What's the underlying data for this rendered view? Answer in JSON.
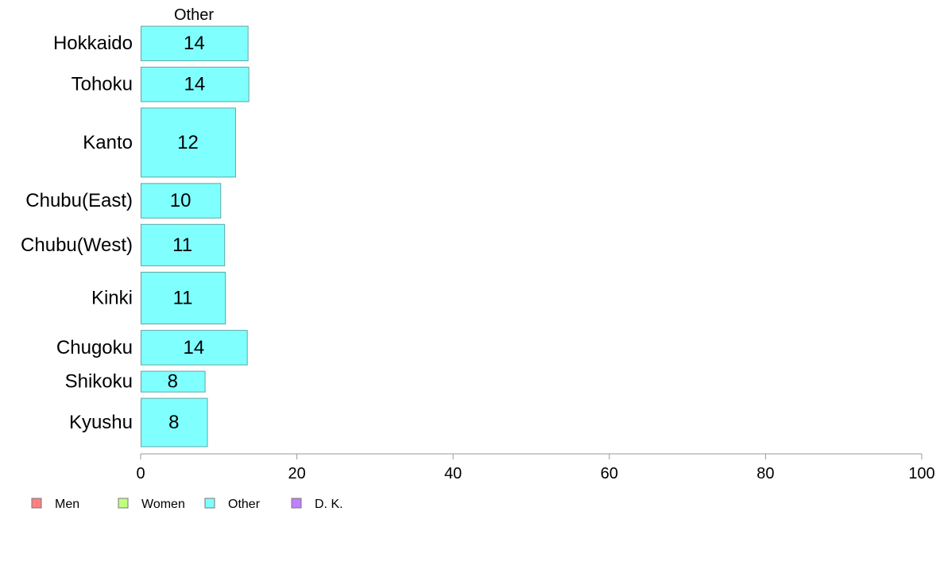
{
  "chart_data": {
    "type": "bar",
    "orientation": "horizontal",
    "column_title": "Other",
    "categories": [
      "Hokkaido",
      "Tohoku",
      "Kanto",
      "Chubu(East)",
      "Chubu(West)",
      "Kinki",
      "Chugoku",
      "Shikoku",
      "Kyushu"
    ],
    "values": [
      13.7,
      13.8,
      12.1,
      10.2,
      10.7,
      10.8,
      13.6,
      8.2,
      8.5
    ],
    "data_labels": [
      "14",
      "14",
      "12",
      "10",
      "11",
      "11",
      "14",
      "8",
      "8"
    ],
    "relative_weights": [
      1,
      1,
      2,
      1,
      1.2,
      1.5,
      1,
      0.6,
      1.4
    ],
    "xlim": [
      0,
      100
    ],
    "xticks": [
      0,
      20,
      40,
      60,
      80,
      100
    ],
    "grid": false,
    "bar_color": "#80ffff",
    "bar_border": "#5ea7a7",
    "axis_color": "#999999",
    "legend_position": "bottom-left",
    "legend": [
      {
        "label": "Men",
        "color": "#ff8080"
      },
      {
        "label": "Women",
        "color": "#c0ff80"
      },
      {
        "label": "Other",
        "color": "#80ffff"
      },
      {
        "label": "D. K.",
        "color": "#c080ff"
      }
    ]
  }
}
